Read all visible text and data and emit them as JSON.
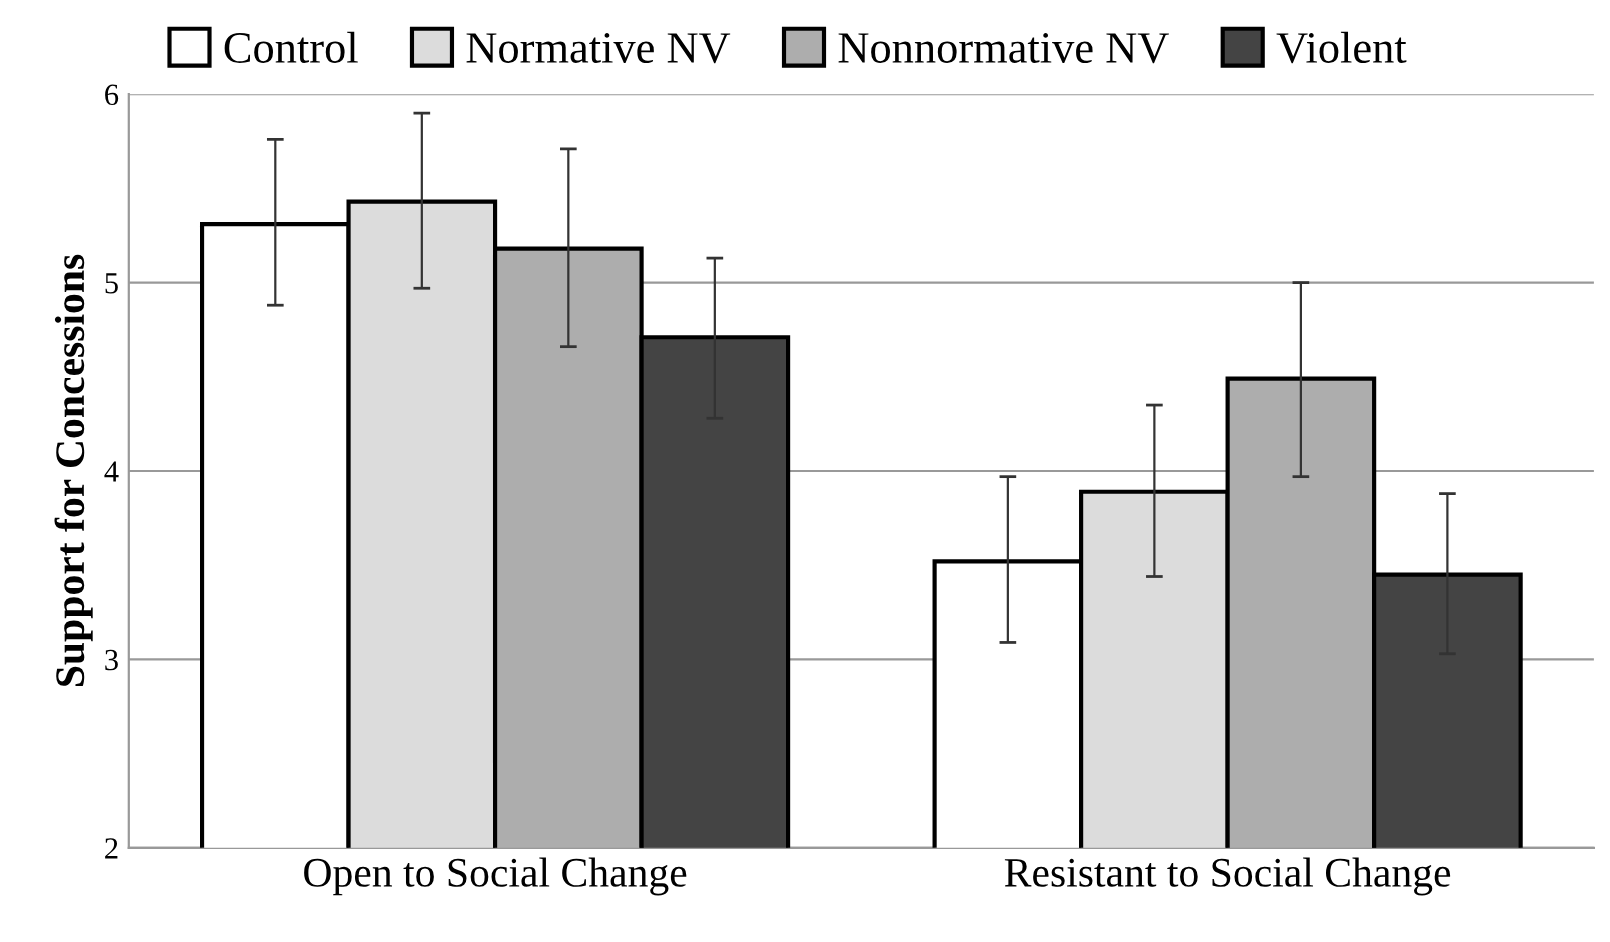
{
  "chart_data": {
    "type": "bar",
    "ylabel": "Support for Concessions",
    "categories": [
      "Open to Social Change",
      "Resistant to Social Change"
    ],
    "series": [
      {
        "name": "Control",
        "color": "#ffffff",
        "values": [
          5.31,
          3.52
        ],
        "errors": [
          [
            4.88,
            5.76
          ],
          [
            3.09,
            3.97
          ]
        ]
      },
      {
        "name": "Normative NV",
        "color": "#dcdcdc",
        "values": [
          5.43,
          3.89
        ],
        "errors": [
          [
            4.97,
            5.9
          ],
          [
            3.44,
            4.35
          ]
        ]
      },
      {
        "name": "Nonnormative NV",
        "color": "#adadad",
        "values": [
          5.18,
          4.49
        ],
        "errors": [
          [
            4.66,
            5.71
          ],
          [
            3.97,
            5.0
          ]
        ]
      },
      {
        "name": "Violent",
        "color": "#444444",
        "values": [
          4.71,
          3.45
        ],
        "errors": [
          [
            4.28,
            5.13
          ],
          [
            3.03,
            3.88
          ]
        ]
      }
    ],
    "ylim": [
      2,
      6
    ],
    "yticks": [
      2,
      3,
      4,
      5,
      6
    ],
    "grid": "y",
    "legend": "top"
  }
}
